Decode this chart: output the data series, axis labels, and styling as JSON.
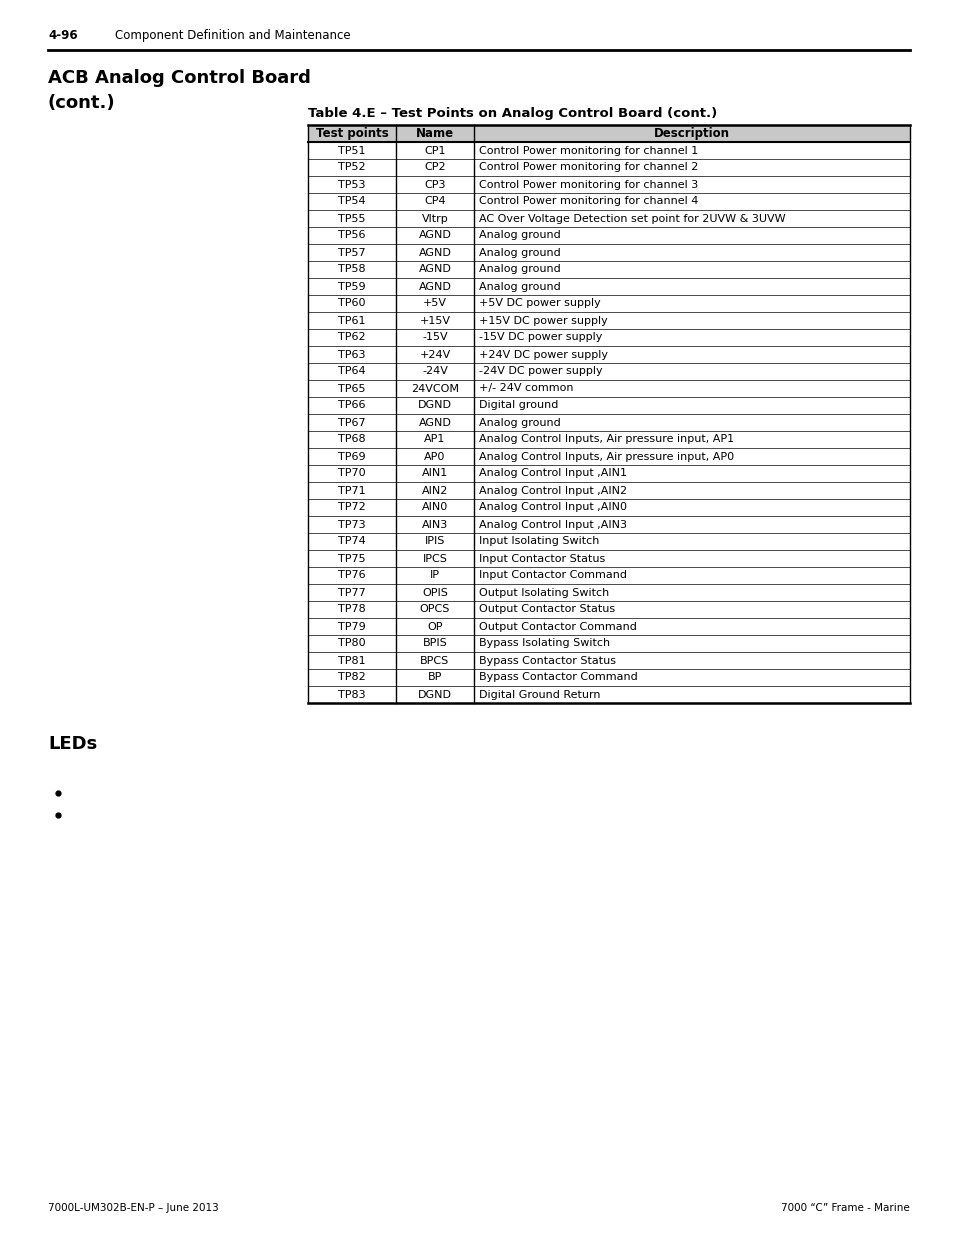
{
  "page_number": "4-96",
  "page_header": "Component Definition and Maintenance",
  "footer_left": "7000L-UM302B-EN-P – June 2013",
  "footer_right": "7000 “C” Frame - Marine",
  "section_title_line1": "ACB Analog Control Board",
  "section_title_line2": "(cont.)",
  "table_title": "Table 4.E – Test Points on Analog Control Board (cont.)",
  "table_headers": [
    "Test points",
    "Name",
    "Description"
  ],
  "table_data": [
    [
      "TP51",
      "CP1",
      "Control Power monitoring for channel 1"
    ],
    [
      "TP52",
      "CP2",
      "Control Power monitoring for channel 2"
    ],
    [
      "TP53",
      "CP3",
      "Control Power monitoring for channel 3"
    ],
    [
      "TP54",
      "CP4",
      "Control Power monitoring for channel 4"
    ],
    [
      "TP55",
      "Vltrp",
      "AC Over Voltage Detection set point for 2UVW & 3UVW"
    ],
    [
      "TP56",
      "AGND",
      "Analog ground"
    ],
    [
      "TP57",
      "AGND",
      "Analog ground"
    ],
    [
      "TP58",
      "AGND",
      "Analog ground"
    ],
    [
      "TP59",
      "AGND",
      "Analog ground"
    ],
    [
      "TP60",
      "+5V",
      "+5V DC power supply"
    ],
    [
      "TP61",
      "+15V",
      "+15V DC power supply"
    ],
    [
      "TP62",
      "-15V",
      "-15V DC power supply"
    ],
    [
      "TP63",
      "+24V",
      "+24V DC power supply"
    ],
    [
      "TP64",
      "-24V",
      "-24V DC power supply"
    ],
    [
      "TP65",
      "24VCOM",
      "+/- 24V common"
    ],
    [
      "TP66",
      "DGND",
      "Digital ground"
    ],
    [
      "TP67",
      "AGND",
      "Analog ground"
    ],
    [
      "TP68",
      "AP1",
      "Analog Control Inputs, Air pressure input, AP1"
    ],
    [
      "TP69",
      "AP0",
      "Analog Control Inputs, Air pressure input, AP0"
    ],
    [
      "TP70",
      "AIN1",
      "Analog Control Input ,AIN1"
    ],
    [
      "TP71",
      "AIN2",
      "Analog Control Input ,AIN2"
    ],
    [
      "TP72",
      "AIN0",
      "Analog Control Input ,AIN0"
    ],
    [
      "TP73",
      "AIN3",
      "Analog Control Input ,AIN3"
    ],
    [
      "TP74",
      "IPIS",
      "Input Isolating Switch"
    ],
    [
      "TP75",
      "IPCS",
      "Input Contactor Status"
    ],
    [
      "TP76",
      "IP",
      "Input Contactor Command"
    ],
    [
      "TP77",
      "OPIS",
      "Output Isolating Switch"
    ],
    [
      "TP78",
      "OPCS",
      "Output Contactor Status"
    ],
    [
      "TP79",
      "OP",
      "Output Contactor Command"
    ],
    [
      "TP80",
      "BPIS",
      "Bypass Isolating Switch"
    ],
    [
      "TP81",
      "BPCS",
      "Bypass Contactor Status"
    ],
    [
      "TP82",
      "BP",
      "Bypass Contactor Command"
    ],
    [
      "TP83",
      "DGND",
      "Digital Ground Return"
    ]
  ],
  "section2_title": "LEDs",
  "header_bg_color": "#c8c8c8",
  "text_color": "#000000",
  "background_color": "#ffffff"
}
